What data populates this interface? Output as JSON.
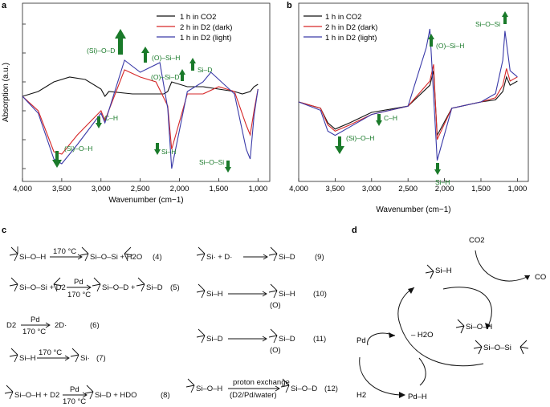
{
  "panels": {
    "a": "a",
    "b": "b",
    "c": "c",
    "d": "d"
  },
  "axes": {
    "ylabel": "Absorption (a.u.)",
    "xlabel": "Wavenumber (cm−1)",
    "xticks": [
      "4,000",
      "3,500",
      "3,000",
      "2,500",
      "2,000",
      "1,500",
      "1,000"
    ]
  },
  "legend": [
    {
      "label": "1 h in CO2",
      "color": "#111111"
    },
    {
      "label": "2 h in D2 (dark)",
      "color": "#d62728"
    },
    {
      "label": "1 h in D2 (light)",
      "color": "#3a3aa8"
    }
  ],
  "chart_data": [
    {
      "type": "line",
      "panel": "a",
      "xlabel": "Wavenumber (cm−1)",
      "ylabel": "Absorption (a.u.)",
      "xlim": [
        4000,
        850
      ],
      "reversed_x": true,
      "series": [
        {
          "name": "1 h in CO2",
          "x": [
            4000,
            3800,
            3600,
            3400,
            3200,
            3000,
            2950,
            2900,
            2600,
            2400,
            2200,
            2150,
            2100,
            1900,
            1700,
            1500,
            1300,
            1200,
            1100,
            1050,
            1000
          ],
          "y": [
            0,
            0.2,
            0.6,
            0.8,
            0.7,
            0.3,
            0,
            0.2,
            0.1,
            0.1,
            0.1,
            0.2,
            0.6,
            0.4,
            0.4,
            0.3,
            0.2,
            0.1,
            0.2,
            0.4,
            0.5
          ]
        },
        {
          "name": "2 h in D2 (dark)",
          "x": [
            4000,
            3800,
            3600,
            3500,
            3300,
            3000,
            2950,
            2700,
            2500,
            2300,
            2150,
            2100,
            1900,
            1700,
            1500,
            1300,
            1150,
            1100,
            1050,
            1000
          ],
          "y": [
            0,
            -0.6,
            -2.3,
            -2.4,
            -1.6,
            -0.6,
            -1.0,
            1.1,
            0.8,
            0.6,
            -0.4,
            -2.2,
            0.1,
            0.1,
            0.4,
            0.2,
            -1.2,
            -1.6,
            -0.6,
            0.3
          ]
        },
        {
          "name": "1 h in D2 (light)",
          "x": [
            4000,
            3800,
            3600,
            3500,
            3300,
            3000,
            2950,
            2700,
            2500,
            2250,
            2150,
            2100,
            1900,
            1700,
            1600,
            1300,
            1150,
            1100,
            1050,
            1000
          ],
          "y": [
            0,
            -0.7,
            -2.6,
            -2.8,
            -2.0,
            -0.7,
            -1.1,
            1.5,
            1.0,
            1.4,
            -0.5,
            -3.0,
            0.2,
            0.6,
            1.0,
            0.1,
            -2.2,
            -2.6,
            -0.8,
            0.3
          ]
        }
      ],
      "annotations": [
        "(Si)–O–D",
        "(O)–Si–H",
        "(O)–Si–D",
        "Si–D",
        "C–H",
        "(Si)–O–H",
        "Si–H",
        "Si–O–Si"
      ]
    },
    {
      "type": "line",
      "panel": "b",
      "xlabel": "Wavenumber (cm−1)",
      "xlim": [
        4000,
        850
      ],
      "reversed_x": true,
      "series": [
        {
          "name": "1 h in CO2",
          "x": [
            4000,
            3700,
            3600,
            3500,
            3300,
            3000,
            2500,
            2200,
            2150,
            2100,
            1900,
            1500,
            1300,
            1200,
            1150,
            1100,
            1000
          ],
          "y": [
            0,
            -0.3,
            -1.0,
            -1.3,
            -1.0,
            -0.5,
            -0.2,
            0.8,
            1.5,
            -1.6,
            -0.3,
            0,
            0.1,
            0.5,
            1.2,
            0.8,
            1.0
          ]
        },
        {
          "name": "2 h in D2 (dark)",
          "x": [
            4000,
            3700,
            3600,
            3500,
            3300,
            3000,
            2500,
            2200,
            2150,
            2100,
            1900,
            1500,
            1300,
            1200,
            1150,
            1100,
            1000
          ],
          "y": [
            0,
            -0.3,
            -1.1,
            -1.4,
            -1.1,
            -0.6,
            -0.2,
            1.0,
            1.8,
            -1.8,
            -0.3,
            0,
            0.2,
            0.8,
            1.6,
            1.0,
            1.2
          ]
        },
        {
          "name": "1 h in D2 (light)",
          "x": [
            4000,
            3700,
            3600,
            3500,
            3300,
            3000,
            2500,
            2250,
            2200,
            2100,
            1900,
            1500,
            1300,
            1200,
            1170,
            1100,
            1000
          ],
          "y": [
            0,
            -0.4,
            -1.4,
            -1.6,
            -1.2,
            -0.6,
            -0.2,
            2.6,
            3.5,
            -2.8,
            -0.3,
            0,
            0.4,
            2.0,
            3.4,
            1.5,
            1.2
          ]
        }
      ],
      "annotations": [
        "(O)–Si–H",
        "Si–O–Si",
        "(Si)–O–H",
        "C–H",
        "Si–H"
      ]
    }
  ],
  "equations": {
    "e4": {
      "lhs": "Si–O–H",
      "cond": "170 °C",
      "rhs": "Si–O–Si + H2O",
      "num": "(4)"
    },
    "e5": {
      "lhs": "Si–O–Si + D2",
      "cat": "Pd",
      "cond": "170 °C",
      "rhs": "Si–O–D +",
      "rhs2": "Si–D",
      "num": "(5)"
    },
    "e6": {
      "lhs": "D2",
      "cat": "Pd",
      "cond": "170 °C",
      "rhs": "2D·",
      "num": "(6)"
    },
    "e7": {
      "lhs": "Si–H",
      "cond": "170 °C",
      "rhs": "Si·",
      "num": "(7)"
    },
    "e8": {
      "lhs": "Si–O–H + D2",
      "cat": "Pd",
      "cond": "170 °C",
      "rhs": "Si–D  +  HDO",
      "num": "(8)"
    },
    "e9": {
      "lhs": "Si·  + D·",
      "rhs": "Si–D",
      "num": "(9)"
    },
    "e10": {
      "lhs": "Si–H",
      "rhs": "Si–H",
      "sub": "(O)",
      "num": "(10)"
    },
    "e11": {
      "lhs": "Si–D",
      "rhs": "Si–D",
      "sub": "(O)",
      "num": "(11)"
    },
    "e12": {
      "lhs": "Si–O–H",
      "cat": "proton exchange",
      "cond": "(D2/Pd/water)",
      "rhs": "Si–O–D",
      "num": "(12)"
    }
  },
  "cycle": {
    "co2": "CO2",
    "co": "CO",
    "sih": "Si–H",
    "sioh": "Si–O–H",
    "siosi": "Si–O–Si",
    "h2o": "– H2O",
    "pd": "Pd",
    "h2": "H2",
    "pdh": "Pd–H"
  }
}
